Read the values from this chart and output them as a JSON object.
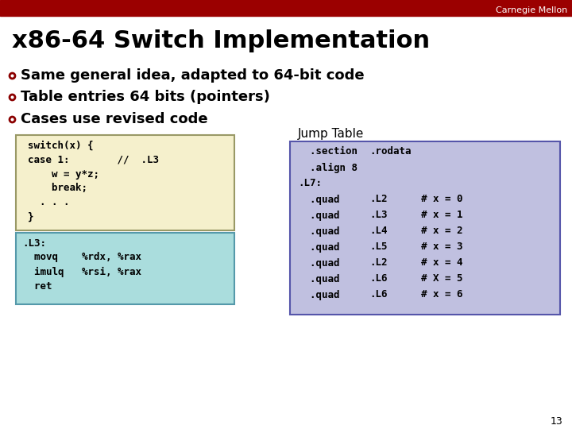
{
  "title": "x86-64 Switch Implementation",
  "header_bar_color": "#9B0000",
  "header_text": "Carnegie Mellon",
  "bg_color": "#ffffff",
  "title_color": "#000000",
  "bullet_color": "#8B0000",
  "bullet_points": [
    "Same general idea, adapted to 64-bit code",
    "Table entries 64 bits (pointers)",
    "Cases use revised code"
  ],
  "code_box1_bg": "#F5F0CC",
  "code_box1_border": "#999966",
  "code_box1_lines": [
    "switch(x) {",
    "case 1:        //  .L3",
    "    w = y*z;",
    "    break;",
    "  . . .",
    "}"
  ],
  "code_box2_bg": "#AADDDD",
  "code_box2_border": "#5599AA",
  "code_box2_lines": [
    ".L3:",
    "  movq    %rdx, %rax",
    "  imulq   %rsi, %rax",
    "  ret"
  ],
  "jump_table_label": "Jump Table",
  "jump_table_bg": "#C0C0E0",
  "jump_table_border": "#5555AA",
  "jump_table_lines_col1": [
    "  .section",
    "  .align 8",
    ".L7:",
    "  .quad",
    "  .quad",
    "  .quad",
    "  .quad",
    "  .quad",
    "  .quad",
    "  .quad"
  ],
  "jump_table_lines_col2": [
    ".rodata",
    "",
    "",
    ".L2",
    ".L3",
    ".L4",
    ".L5",
    ".L2",
    ".L6",
    ".L6"
  ],
  "jump_table_lines_col3": [
    "",
    "",
    "",
    "# x = 0",
    "# x = 1",
    "# x = 2",
    "# x = 3",
    "# x = 4",
    "# X = 5",
    "# x = 6"
  ],
  "slide_number": "13",
  "font_size_title": 22,
  "font_size_bullet": 13,
  "font_size_code": 9,
  "font_size_header": 8
}
